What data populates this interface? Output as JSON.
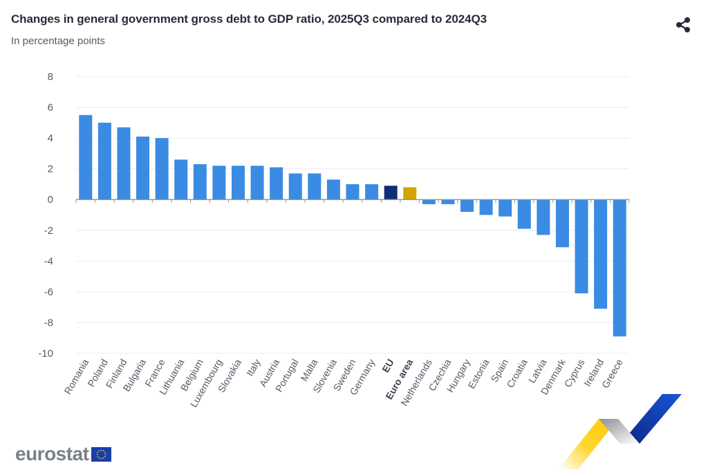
{
  "header": {
    "title": "Changes in general government gross debt to GDP ratio, 2025Q3 compared to 2024Q3",
    "subtitle": "In percentage points",
    "share_icon": "share-icon"
  },
  "footer": {
    "logo_text": "eurostat",
    "flag_icon": "eu-flag-icon"
  },
  "colors": {
    "country": "#3a8be3",
    "eu": "#0d2d7a",
    "euro_area": "#d4a300",
    "grid": "#e6ecf5",
    "axis": "#999999"
  },
  "chart_data": {
    "type": "bar",
    "title": "Changes in general government gross debt to GDP ratio, 2025Q3 compared to 2024Q3",
    "subtitle": "In percentage points",
    "xlabel": "",
    "ylabel": "",
    "ylim": [
      -10,
      8
    ],
    "yticks": [
      8,
      6,
      4,
      2,
      0,
      -2,
      -4,
      -6,
      -8,
      -10
    ],
    "grid": true,
    "legend": "none",
    "categories": [
      "Romania",
      "Poland",
      "Finland",
      "Bulgaria",
      "France",
      "Lithuania",
      "Belgium",
      "Luxembourg",
      "Slovakia",
      "Italy",
      "Austria",
      "Portugal",
      "Malta",
      "Slovenia",
      "Sweden",
      "Germany",
      "EU",
      "Euro area",
      "Netherlands",
      "Czechia",
      "Hungary",
      "Estonia",
      "Spain",
      "Croatia",
      "Latvia",
      "Denmark",
      "Cyprus",
      "Ireland",
      "Greece"
    ],
    "values": [
      5.5,
      5.0,
      4.7,
      4.1,
      4.0,
      2.6,
      2.3,
      2.2,
      2.2,
      2.2,
      2.1,
      1.7,
      1.7,
      1.3,
      1.0,
      1.0,
      0.9,
      0.8,
      -0.3,
      -0.3,
      -0.8,
      -1.0,
      -1.1,
      -1.9,
      -2.3,
      -3.1,
      -6.1,
      -7.1,
      -8.9
    ],
    "highlight": {
      "EU": "eu",
      "Euro area": "euro_area"
    },
    "bold_categories": [
      "EU",
      "Euro area"
    ]
  }
}
